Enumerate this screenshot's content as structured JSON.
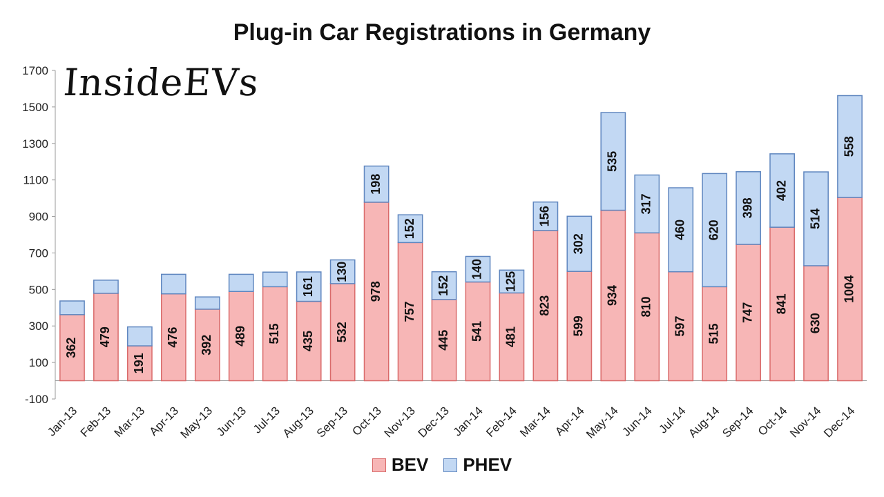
{
  "chart_data": {
    "type": "bar",
    "stacked": true,
    "title": "Plug-in Car Registrations in Germany",
    "watermark": "InsideEVs",
    "categories": [
      "Jan-13",
      "Feb-13",
      "Mar-13",
      "Apr-13",
      "May-13",
      "Jun-13",
      "Jul-13",
      "Aug-13",
      "Sep-13",
      "Oct-13",
      "Nov-13",
      "Dec-13",
      "Jan-14",
      "Feb-14",
      "Mar-14",
      "Apr-14",
      "May-14",
      "Jun-14",
      "Jul-14",
      "Aug-14",
      "Sep-14",
      "Oct-14",
      "Nov-14",
      "Dec-14"
    ],
    "series": [
      {
        "name": "BEV",
        "color": "#f7b6b6",
        "values": [
          362,
          479,
          191,
          476,
          392,
          489,
          515,
          435,
          532,
          978,
          757,
          445,
          541,
          481,
          823,
          599,
          934,
          810,
          597,
          515,
          747,
          841,
          630,
          1004
        ],
        "labels": [
          "362",
          "479",
          "191",
          "476",
          "392",
          "489",
          "515",
          "435",
          "532",
          "978",
          "757",
          "445",
          "541",
          "481",
          "823",
          "599",
          "934",
          "810",
          "597",
          "515",
          "747",
          "841",
          "630",
          "1004"
        ]
      },
      {
        "name": "PHEV",
        "color": "#c2d8f3",
        "values": [
          75,
          72,
          104,
          107,
          67,
          94,
          80,
          161,
          130,
          198,
          152,
          152,
          140,
          125,
          156,
          302,
          535,
          317,
          460,
          620,
          398,
          402,
          514,
          558
        ],
        "labels": [
          "",
          "",
          "",
          "",
          "",
          "",
          "",
          "161",
          "130",
          "198",
          "152",
          "152",
          "140",
          "125",
          "156",
          "302",
          "535",
          "317",
          "460",
          "620",
          "398",
          "402",
          "514",
          "558"
        ]
      }
    ],
    "ylim": [
      -100,
      1700
    ],
    "yticks": [
      "-100",
      "100",
      "300",
      "500",
      "700",
      "900",
      "1100",
      "1300",
      "1500",
      "1700"
    ],
    "grid": false,
    "legend_position": "bottom"
  }
}
